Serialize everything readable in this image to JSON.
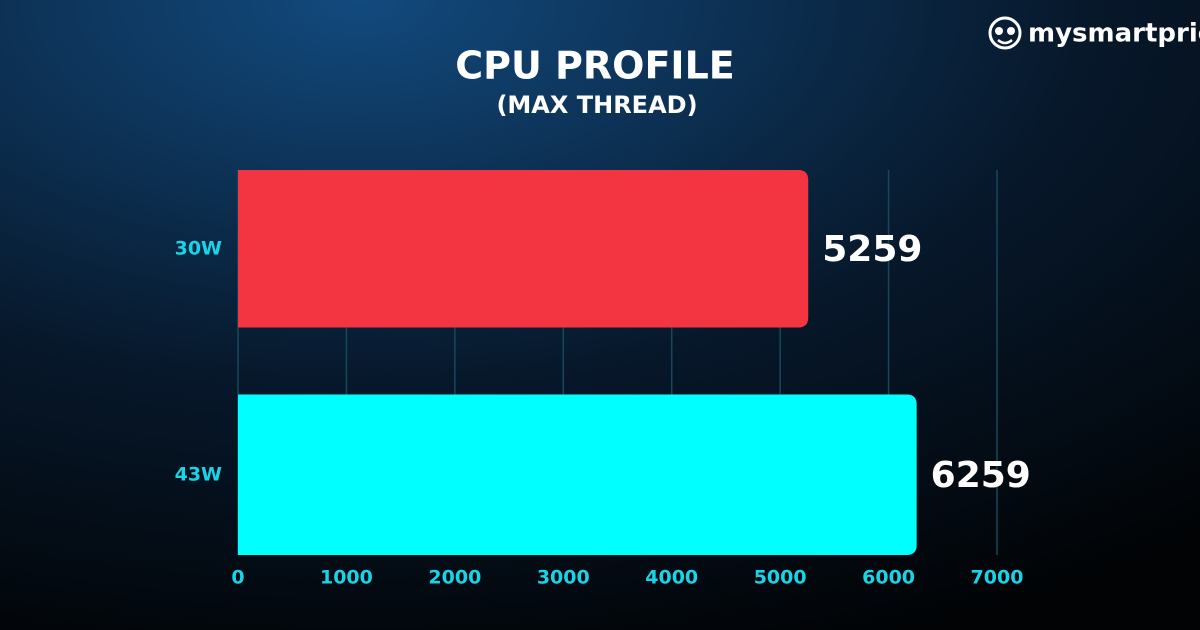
{
  "brand": "mysmartprice",
  "chart_data": {
    "type": "hbar",
    "title": "CPU PROFILE",
    "subtitle": "(MAX THREAD)",
    "categories": [
      "30W",
      "43W"
    ],
    "values": [
      5259,
      6259
    ],
    "colors": [
      "#f23540",
      "#00ffff"
    ],
    "xlim": [
      0,
      7000
    ],
    "xticks": [
      0,
      1000,
      2000,
      3000,
      4000,
      5000,
      6000,
      7000
    ],
    "grid": true
  }
}
